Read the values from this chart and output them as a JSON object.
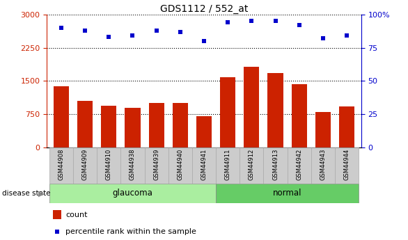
{
  "title": "GDS1112 / 552_at",
  "samples": [
    "GSM44908",
    "GSM44909",
    "GSM44910",
    "GSM44938",
    "GSM44939",
    "GSM44940",
    "GSM44941",
    "GSM44911",
    "GSM44912",
    "GSM44913",
    "GSM44942",
    "GSM44943",
    "GSM44944"
  ],
  "counts": [
    1380,
    1060,
    950,
    890,
    1010,
    1010,
    700,
    1580,
    1820,
    1680,
    1430,
    800,
    930
  ],
  "percentiles": [
    90,
    88,
    83,
    84,
    88,
    87,
    80,
    94,
    95,
    95,
    92,
    82,
    84
  ],
  "groups": [
    "glaucoma",
    "glaucoma",
    "glaucoma",
    "glaucoma",
    "glaucoma",
    "glaucoma",
    "glaucoma",
    "normal",
    "normal",
    "normal",
    "normal",
    "normal",
    "normal"
  ],
  "bar_color": "#cc2200",
  "dot_color": "#0000cc",
  "glaucoma_color": "#aaeea0",
  "normal_color": "#66cc66",
  "tick_bg_color": "#cccccc",
  "tick_bg_edge": "#aaaaaa",
  "ylim_left": [
    0,
    3000
  ],
  "ylim_right": [
    0,
    100
  ],
  "yticks_left": [
    0,
    750,
    1500,
    2250,
    3000
  ],
  "yticks_right": [
    0,
    25,
    50,
    75,
    100
  ],
  "grid_values": [
    750,
    1500,
    2250,
    3000
  ],
  "bar_width": 0.65,
  "figsize": [
    5.86,
    3.45
  ],
  "dpi": 100
}
